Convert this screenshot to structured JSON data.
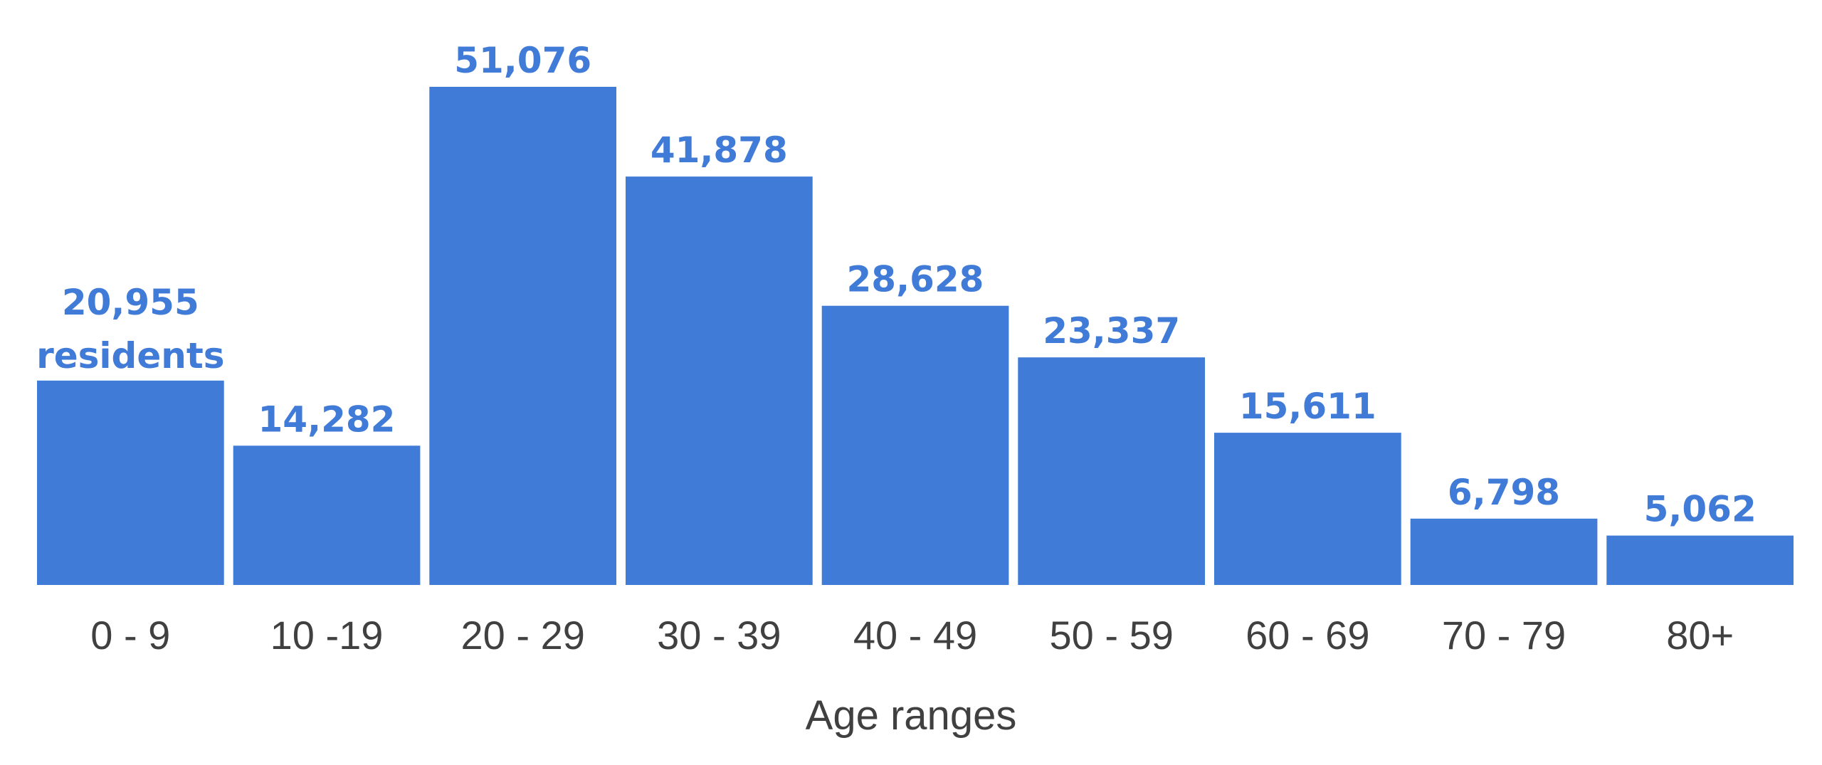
{
  "chart_data": {
    "type": "bar",
    "categories": [
      "0 - 9",
      "10 -19",
      "20 - 29",
      "30 - 39",
      "40 - 49",
      "50 - 59",
      "60 - 69",
      "70 - 79",
      "80+"
    ],
    "values": [
      20955,
      14282,
      51076,
      41878,
      28628,
      23337,
      15611,
      6798,
      5062
    ],
    "value_labels": [
      "20,955",
      "14,282",
      "51,076",
      "41,878",
      "28,628",
      "23,337",
      "15,611",
      "6,798",
      "5,062"
    ],
    "first_label_suffix": "residents",
    "xlabel": "Age ranges",
    "ylabel": "",
    "title": "",
    "ylim": [
      0,
      51076
    ],
    "grid": false,
    "legend": "none",
    "bar_color": "#407BD8",
    "label_color": "#407BD8",
    "text_color": "#404040"
  }
}
